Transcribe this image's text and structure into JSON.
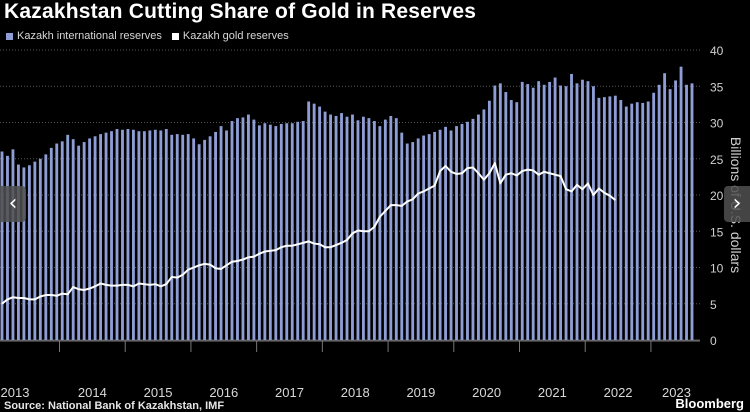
{
  "title": "Kazakhstan Cutting Share of Gold in Reserves",
  "footer": {
    "source": "Source: National Bank of Kazakhstan, IMF",
    "brand": "Bloomberg"
  },
  "nav": {
    "prev_icon": "chevron-left-icon",
    "next_icon": "chevron-right-icon"
  },
  "colors": {
    "bars": "#8e9dd4",
    "line": "#ffffff",
    "background": "#000000",
    "grid": "#555555"
  },
  "chart_data": {
    "type": "bar+line",
    "ylabel": "Billions of U.S. dollars",
    "ylim": [
      0,
      40
    ],
    "yticks": [
      0,
      5,
      10,
      15,
      20,
      25,
      30,
      35,
      40
    ],
    "grid": "horizontal dotted",
    "legend_position": "top-left",
    "x_start": "2013-02",
    "frequency": "monthly",
    "year_labels": [
      "2013",
      "2014",
      "2015",
      "2016",
      "2017",
      "2018",
      "2019",
      "2020",
      "2021",
      "2022",
      "2023"
    ],
    "series": [
      {
        "name": "Kazakh international reserves",
        "type": "bar",
        "values": [
          26.0,
          25.4,
          26.3,
          24.2,
          23.8,
          24.1,
          24.6,
          25.0,
          25.6,
          26.5,
          27.1,
          27.4,
          28.3,
          27.7,
          26.8,
          27.3,
          27.8,
          28.1,
          28.4,
          28.6,
          28.8,
          29.1,
          29.0,
          29.1,
          29.0,
          28.8,
          28.8,
          28.9,
          29.0,
          28.9,
          29.1,
          28.3,
          28.4,
          28.3,
          28.4,
          27.8,
          27.0,
          27.6,
          28.1,
          28.7,
          29.5,
          28.9,
          30.2,
          30.6,
          30.7,
          31.1,
          30.4,
          29.6,
          29.9,
          29.7,
          29.5,
          29.8,
          29.9,
          29.9,
          30.1,
          30.2,
          32.9,
          32.6,
          32.2,
          31.5,
          31.1,
          30.9,
          31.3,
          30.8,
          31.1,
          30.3,
          30.8,
          30.6,
          30.2,
          29.5,
          30.4,
          30.9,
          30.6,
          28.6,
          27.1,
          27.3,
          27.8,
          28.2,
          28.4,
          28.7,
          29.0,
          29.4,
          28.9,
          29.5,
          29.8,
          30.1,
          30.5,
          31.1,
          31.8,
          33.0,
          35.1,
          35.4,
          34.2,
          33.1,
          32.8,
          35.6,
          35.3,
          34.8,
          35.7,
          35.2,
          35.6,
          36.2,
          35.1,
          35.0,
          36.7,
          35.4,
          35.9,
          35.7,
          35.0,
          33.4,
          33.5,
          33.6,
          33.7,
          33.1,
          32.2,
          32.6,
          32.8,
          32.7,
          32.9,
          34.1,
          35.2,
          36.8,
          34.6,
          35.8,
          37.7,
          35.2,
          35.4
        ]
      },
      {
        "name": "Kazakh gold reserves",
        "type": "line",
        "values": [
          5.0,
          5.6,
          5.9,
          5.8,
          5.8,
          5.6,
          5.6,
          6.0,
          6.2,
          6.2,
          6.1,
          6.4,
          6.3,
          7.3,
          7.0,
          6.9,
          7.1,
          7.4,
          7.8,
          7.6,
          7.5,
          7.5,
          7.6,
          7.6,
          7.4,
          7.8,
          7.7,
          7.6,
          7.7,
          7.4,
          7.7,
          8.7,
          8.6,
          9.0,
          9.7,
          10.0,
          10.3,
          10.5,
          10.4,
          9.9,
          9.8,
          10.3,
          10.8,
          10.9,
          11.1,
          11.4,
          11.5,
          11.9,
          12.2,
          12.3,
          12.4,
          12.8,
          13.0,
          13.0,
          13.2,
          13.4,
          13.6,
          13.3,
          13.2,
          12.8,
          12.8,
          13.1,
          13.4,
          13.8,
          14.7,
          15.1,
          15.0,
          15.0,
          15.6,
          17.0,
          17.8,
          18.6,
          18.6,
          18.5,
          19.1,
          19.4,
          20.2,
          20.5,
          20.9,
          21.3,
          23.3,
          24.0,
          23.2,
          22.9,
          23.0,
          23.7,
          23.8,
          23.0,
          22.1,
          23.0,
          24.4,
          21.6,
          22.8,
          23.0,
          22.7,
          23.3,
          23.5,
          23.4,
          22.8,
          23.2,
          23.0,
          22.8,
          22.6,
          20.8,
          20.5,
          21.4,
          20.8,
          21.6,
          20.0,
          20.9,
          20.3,
          19.9,
          19.3
        ]
      }
    ]
  }
}
